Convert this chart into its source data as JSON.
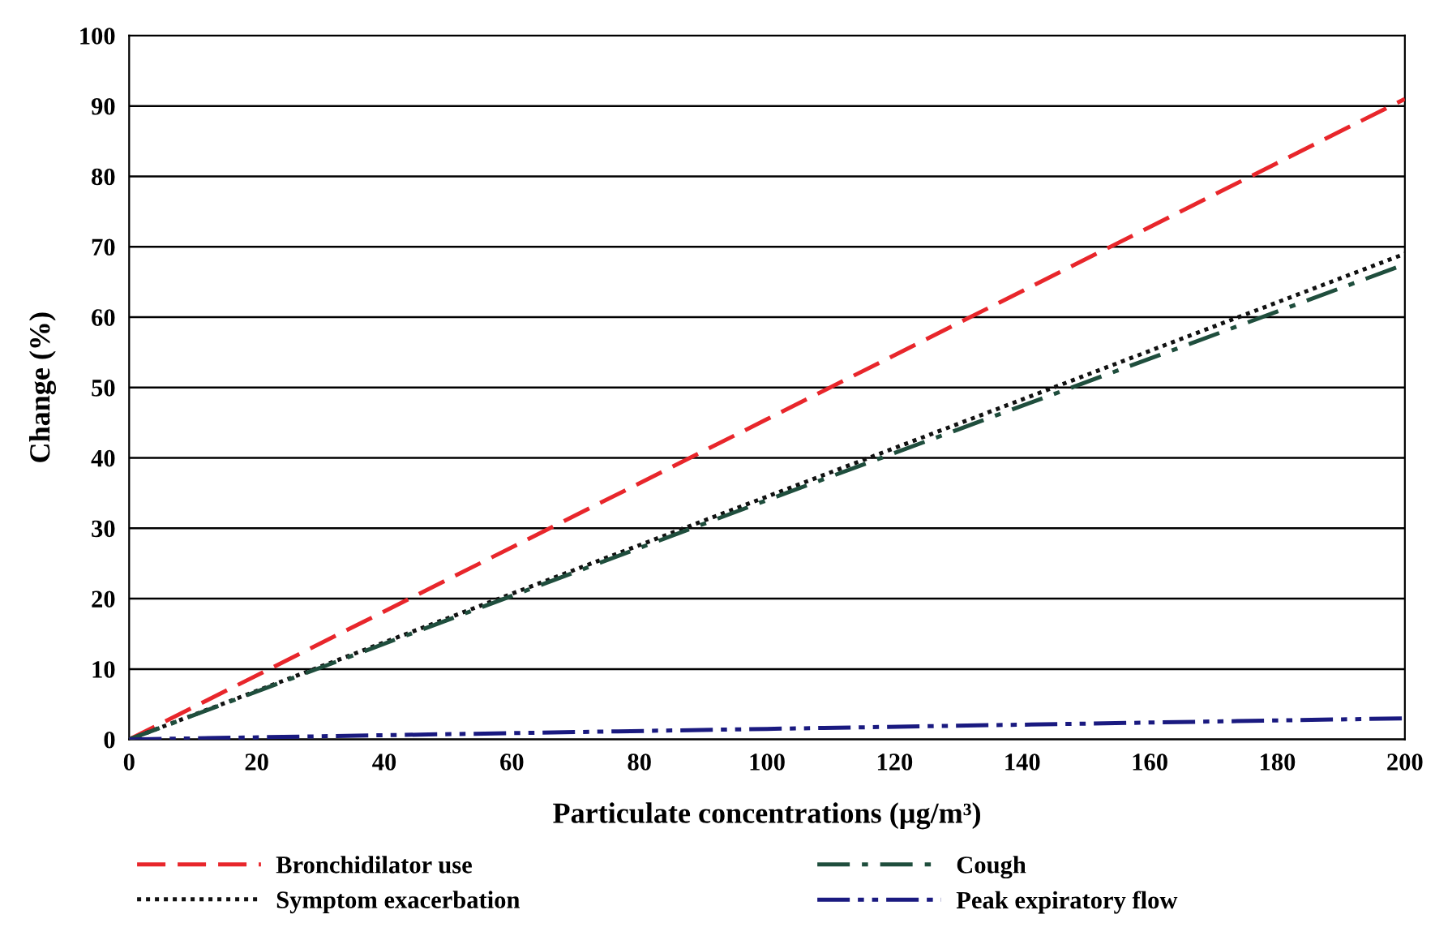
{
  "chart_data": {
    "type": "line",
    "xlabel": "Particulate concentrations (µg/m³)",
    "ylabel": "Change (%)",
    "xlim": [
      0,
      200
    ],
    "ylim": [
      0,
      100
    ],
    "xticks": [
      0,
      20,
      40,
      60,
      80,
      100,
      120,
      140,
      160,
      180,
      200
    ],
    "yticks": [
      0,
      10,
      20,
      30,
      40,
      50,
      60,
      70,
      80,
      90,
      100
    ],
    "grid": "y",
    "legend": "bottom",
    "marker": "none",
    "series": [
      {
        "name": "Bronchidilator use",
        "color": "#e8262b",
        "line_style": "dashed",
        "x": [
          0,
          100,
          200
        ],
        "values": [
          0,
          45.5,
          91
        ]
      },
      {
        "name": "Symptom exacerbation",
        "color": "#111111",
        "line_style": "dotted",
        "x": [
          0,
          100,
          200
        ],
        "values": [
          0,
          34.5,
          69
        ]
      },
      {
        "name": "Cough",
        "color": "#1f4e3d",
        "line_style": "dashdot",
        "x": [
          0,
          100,
          200
        ],
        "values": [
          0,
          34,
          67.5
        ]
      },
      {
        "name": "Peak expiratory flow",
        "color": "#1a1a80",
        "line_style": "dashdotdot",
        "x": [
          0,
          100,
          200
        ],
        "values": [
          0,
          1.5,
          3
        ]
      }
    ]
  }
}
